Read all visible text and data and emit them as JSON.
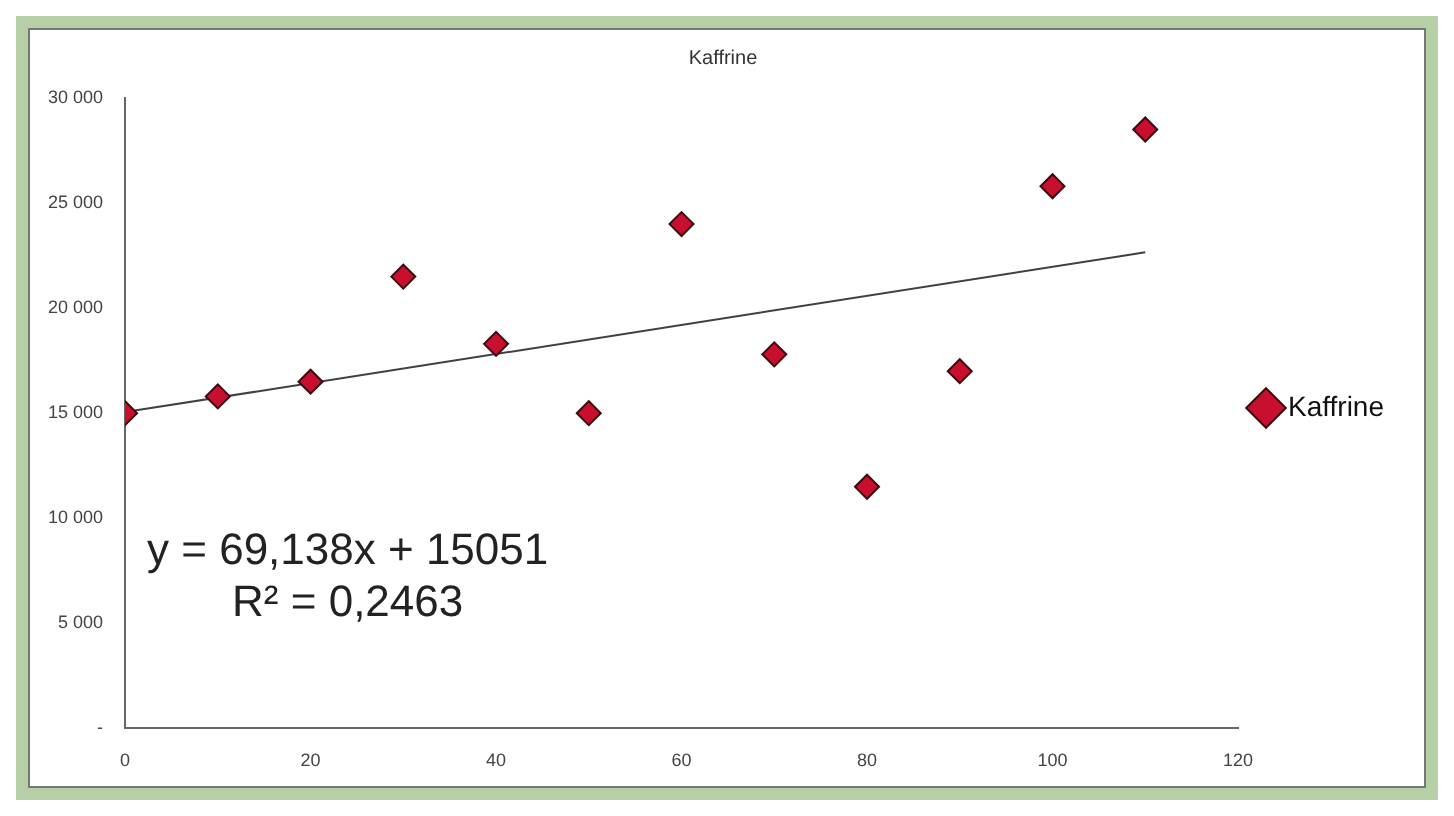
{
  "chart_data": {
    "type": "scatter",
    "title": "Kaffrine",
    "x": [
      0,
      10,
      20,
      30,
      40,
      50,
      60,
      70,
      80,
      90,
      100,
      110
    ],
    "series": [
      {
        "name": "Kaffrine",
        "color": "#c8102e",
        "values": [
          15000,
          15800,
          16500,
          21500,
          18300,
          15000,
          24000,
          17800,
          11500,
          17000,
          25800,
          28500
        ],
        "marker": "diamond"
      },
      {
        "type": "line",
        "color": "#404040",
        "x": [
          0,
          110
        ],
        "values": [
          15051,
          22656
        ],
        "marker": "none",
        "line_style": "solid"
      }
    ],
    "xlim": [
      0,
      120
    ],
    "xticks": [
      0,
      20,
      40,
      60,
      80,
      100,
      120
    ],
    "ylim": [
      0,
      30000
    ],
    "yticks": [
      {
        "value": 0,
        "label": "-"
      },
      {
        "value": 5000,
        "label": "5 000"
      },
      {
        "value": 10000,
        "label": "10 000"
      },
      {
        "value": 15000,
        "label": "15 000"
      },
      {
        "value": 20000,
        "label": "20 000"
      },
      {
        "value": 25000,
        "label": "25 000"
      },
      {
        "value": 30000,
        "label": "30 000"
      }
    ],
    "annotations": [
      "y = 69,138x + 15051",
      "R² = 0,2463"
    ],
    "grid": false,
    "legend": "right"
  }
}
